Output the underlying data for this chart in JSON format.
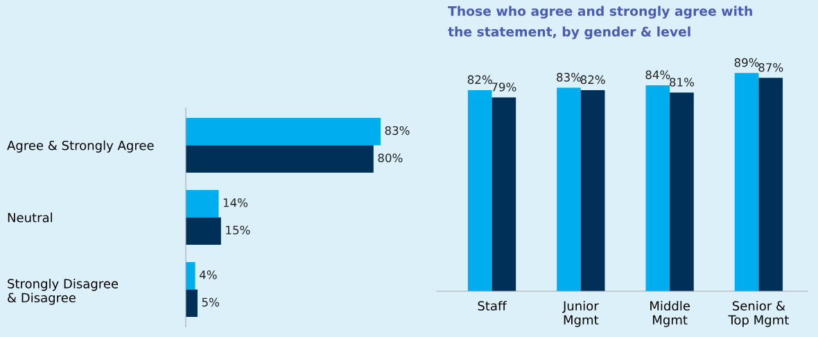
{
  "chart_data": [
    {
      "type": "bar",
      "orientation": "horizontal",
      "categories": [
        "Agree & Strongly Agree",
        "Neutral",
        "Strongly Disagree\n& Disagree"
      ],
      "tick_labels": "y",
      "grid": false,
      "legend": false,
      "series": [
        {
          "color": "#00aeef",
          "values": [
            83,
            14,
            4
          ],
          "value_labels": [
            "83%",
            "14%",
            "4%"
          ]
        },
        {
          "color": "#003057",
          "values": [
            80,
            15,
            5
          ],
          "value_labels": [
            "80%",
            "15%",
            "5%"
          ]
        }
      ]
    },
    {
      "type": "bar",
      "title": "Those who agree and strongly agree with\nthe statement, by gender & level",
      "categories": [
        "Staff",
        "Junior\nMgmt",
        "Middle\nMgmt",
        "Senior &\nTop Mgmt"
      ],
      "tick_labels": "x",
      "grid": false,
      "legend": false,
      "series": [
        {
          "color": "#00aeef",
          "values": [
            82,
            83,
            84,
            89
          ],
          "value_labels": [
            "82%",
            "83%",
            "84%",
            "89%"
          ]
        },
        {
          "color": "#003057",
          "values": [
            79,
            82,
            81,
            87
          ],
          "value_labels": [
            "79%",
            "82%",
            "81%",
            "87%"
          ]
        }
      ]
    }
  ]
}
